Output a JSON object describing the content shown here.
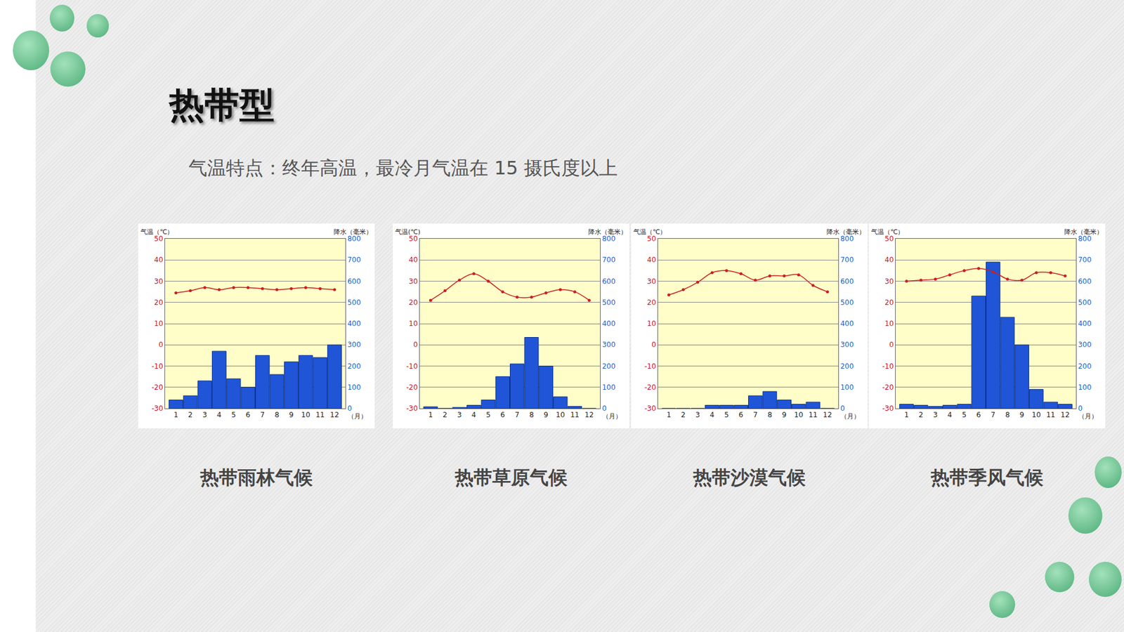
{
  "title": "热带型",
  "subtitle": "气温特点：终年高温，最冷月气温在 15 摄氏度以上",
  "chart_data": [
    {
      "type": "bar",
      "title": "热带雨林气候",
      "categories": [
        "1",
        "2",
        "3",
        "4",
        "5",
        "6",
        "7",
        "8",
        "9",
        "10",
        "11",
        "12"
      ],
      "x_label": "（月）",
      "y_label": "气温（℃）",
      "y2_label": "降水（毫米）",
      "ylim": [
        -30,
        50
      ],
      "yticks": [
        -30,
        -20,
        -10,
        0,
        10,
        20,
        30,
        40,
        50
      ],
      "y2lim": [
        0,
        800
      ],
      "y2ticks": [
        0,
        100,
        200,
        300,
        400,
        500,
        600,
        700,
        800
      ],
      "grid": true,
      "series": [
        {
          "type": "line",
          "color": "#cc1f1f",
          "marker": "circle",
          "values": [
            24.5,
            25.5,
            27,
            26,
            27,
            27,
            26.5,
            26,
            26.5,
            27,
            26.5,
            26
          ]
        },
        {
          "type": "bar",
          "axis": "y2",
          "color": "#1f55d6",
          "values": [
            40,
            60,
            130,
            270,
            140,
            100,
            250,
            160,
            220,
            250,
            240,
            300
          ]
        }
      ]
    },
    {
      "type": "bar",
      "title": "热带草原气候",
      "categories": [
        "1",
        "2",
        "3",
        "4",
        "5",
        "6",
        "7",
        "8",
        "9",
        "10",
        "11",
        "12"
      ],
      "x_label": "（月）",
      "y_label": "气温(℃)",
      "y2_label": "降水（毫米）",
      "ylim": [
        -30,
        50
      ],
      "yticks": [
        -30,
        -20,
        -10,
        0,
        10,
        20,
        30,
        40,
        50
      ],
      "y2lim": [
        0,
        800
      ],
      "y2ticks": [
        0,
        100,
        200,
        300,
        400,
        500,
        600,
        700,
        800
      ],
      "grid": true,
      "series": [
        {
          "type": "line",
          "color": "#cc1f1f",
          "marker": "circle",
          "values": [
            21,
            25.5,
            30.5,
            33.5,
            30,
            25,
            22.5,
            22.5,
            24.5,
            26,
            25,
            21
          ]
        },
        {
          "type": "bar",
          "axis": "y2",
          "color": "#1f55d6",
          "values": [
            8,
            0,
            5,
            15,
            40,
            150,
            210,
            335,
            200,
            55,
            10,
            0
          ]
        }
      ]
    },
    {
      "type": "bar",
      "title": "热带沙漠气候",
      "categories": [
        "1",
        "2",
        "3",
        "4",
        "5",
        "6",
        "7",
        "8",
        "9",
        "10",
        "11",
        "12"
      ],
      "x_label": "（月）",
      "y_label": "气温（℃）",
      "y2_label": "降水（毫米）",
      "ylim": [
        -30,
        50
      ],
      "yticks": [
        -30,
        -20,
        -10,
        0,
        10,
        20,
        30,
        40,
        50
      ],
      "y2lim": [
        0,
        800
      ],
      "y2ticks": [
        0,
        100,
        200,
        300,
        400,
        500,
        600,
        700,
        800
      ],
      "grid": true,
      "series": [
        {
          "type": "line",
          "color": "#cc1f1f",
          "marker": "circle",
          "values": [
            23.5,
            26,
            29.5,
            34,
            35,
            33.5,
            30.5,
            32.5,
            32.5,
            33,
            28,
            25
          ]
        },
        {
          "type": "bar",
          "axis": "y2",
          "color": "#1f55d6",
          "values": [
            0,
            0,
            0,
            15,
            15,
            15,
            60,
            80,
            40,
            20,
            30,
            0
          ]
        }
      ]
    },
    {
      "type": "bar",
      "title": "热带季风气候",
      "categories": [
        "1",
        "2",
        "3",
        "4",
        "5",
        "6",
        "7",
        "8",
        "9",
        "10",
        "11",
        "12"
      ],
      "x_label": "（月）",
      "y_label": "气温（℃）",
      "y2_label": "降水（毫米）",
      "ylim": [
        -30,
        50
      ],
      "yticks": [
        -30,
        -20,
        -10,
        0,
        10,
        20,
        30,
        40,
        50
      ],
      "y2lim": [
        0,
        800
      ],
      "y2ticks": [
        0,
        100,
        200,
        300,
        400,
        500,
        600,
        700,
        800
      ],
      "grid": true,
      "series": [
        {
          "type": "line",
          "color": "#cc1f1f",
          "marker": "circle",
          "values": [
            30,
            30.5,
            31,
            33,
            35,
            36,
            34.5,
            31,
            30.5,
            34,
            34,
            32.5
          ]
        },
        {
          "type": "bar",
          "axis": "y2",
          "color": "#1f55d6",
          "values": [
            20,
            15,
            10,
            15,
            20,
            530,
            690,
            430,
            300,
            90,
            30,
            20
          ]
        }
      ]
    }
  ]
}
